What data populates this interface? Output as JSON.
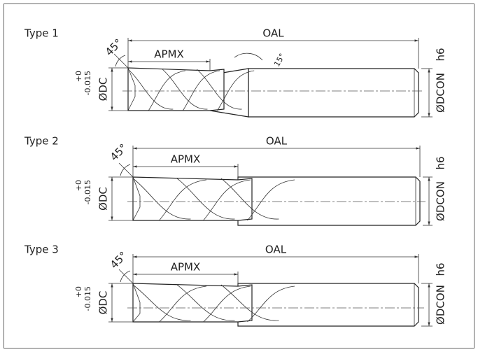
{
  "types": [
    {
      "title": "Type 1",
      "oal": "OAL",
      "apmx": "APMX",
      "helix_angle": "45°",
      "neck_angle": "15°",
      "tolerance_upper": "+0",
      "tolerance_lower": "-0.015",
      "dc": "ØDC",
      "fit": "h6",
      "dcon": "ØDCON"
    },
    {
      "title": "Type 2",
      "oal": "OAL",
      "apmx": "APMX",
      "helix_angle": "45°",
      "tolerance_upper": "+0",
      "tolerance_lower": "-0.015",
      "dc": "ØDC",
      "fit": "h6",
      "dcon": "ØDCON"
    },
    {
      "title": "Type 3",
      "oal": "OAL",
      "apmx": "APMX",
      "helix_angle": "45°",
      "tolerance_upper": "+0",
      "tolerance_lower": "-0.015",
      "dc": "ØDC",
      "fit": "h6",
      "dcon": "ØDCON"
    }
  ]
}
